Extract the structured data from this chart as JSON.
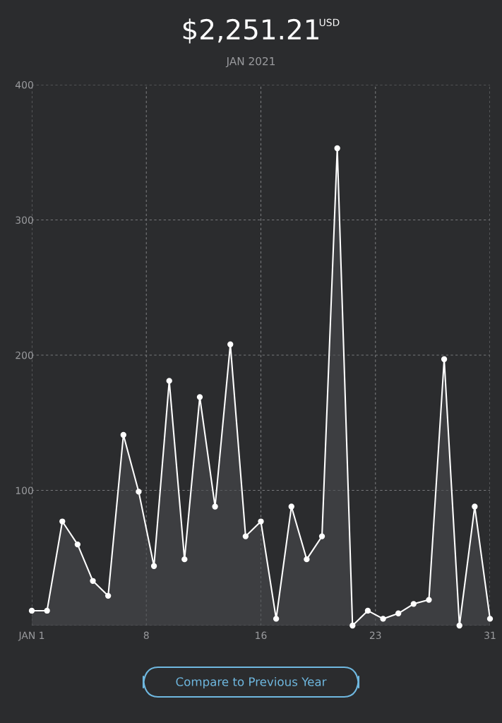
{
  "chart_data": {
    "type": "area",
    "title": "$2,251.21",
    "subtitle": "JAN 2021",
    "annotations": [
      "USD",
      "Compare to Previous Year"
    ],
    "x": [
      1,
      2,
      3,
      4,
      5,
      6,
      7,
      8,
      9,
      10,
      11,
      12,
      13,
      14,
      15,
      16,
      17,
      18,
      19,
      20,
      21,
      22,
      23,
      24,
      25,
      26,
      27,
      28,
      29,
      30,
      31
    ],
    "series": [
      {
        "color": "#ffffff",
        "values": [
          11,
          11,
          77,
          60,
          33,
          22,
          141,
          99,
          44,
          181,
          49,
          169,
          88,
          208,
          66,
          77,
          5,
          88,
          49,
          66,
          353,
          0,
          11,
          5,
          9,
          16,
          19,
          197,
          0,
          88,
          5
        ]
      }
    ],
    "xlim": [
      1,
      31
    ],
    "xticks": [
      {
        "value": 1,
        "label": "JAN 1"
      },
      {
        "value": 8.5,
        "label": "8"
      },
      {
        "value": 16,
        "label": "16"
      },
      {
        "value": 23.5,
        "label": "23"
      },
      {
        "value": 31,
        "label": "31"
      }
    ],
    "ylim": [
      0,
      400
    ],
    "yticks": [
      {
        "value": 0,
        "label": null
      },
      100,
      200,
      300,
      400
    ],
    "grid": true,
    "marker": "circle",
    "line_style": "solid"
  }
}
